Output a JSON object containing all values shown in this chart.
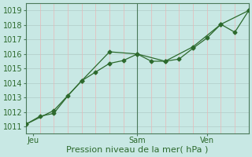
{
  "xlabel": "Pression niveau de la mer( hPa )",
  "bg_color": "#c8e8e4",
  "grid_v_color": "#e8b8b8",
  "grid_h_color": "#b0ccc8",
  "line_color": "#2d6a2d",
  "spine_color": "#4a7a5a",
  "ylim": [
    1010.5,
    1019.5
  ],
  "xlim": [
    0,
    16
  ],
  "yticks": [
    1011,
    1012,
    1013,
    1014,
    1015,
    1016,
    1017,
    1018,
    1019
  ],
  "xtick_pos": [
    0.5,
    8,
    13
  ],
  "xtick_labels": [
    "Jeu",
    "Sam",
    "Ven"
  ],
  "vline_x": 8,
  "n_vgrid": 16,
  "line1_x": [
    0,
    1,
    2,
    3,
    4,
    5,
    6,
    7,
    8,
    9,
    10,
    11,
    12,
    13,
    14,
    15,
    16
  ],
  "line1_y": [
    1011.15,
    1011.7,
    1011.9,
    1013.1,
    1014.15,
    1014.75,
    1015.35,
    1015.55,
    1016.0,
    1015.5,
    1015.5,
    1015.65,
    1016.4,
    1017.1,
    1018.05,
    1017.5,
    1019.0
  ],
  "line2_x": [
    0,
    2,
    4,
    6,
    8,
    10,
    12,
    14,
    16
  ],
  "line2_y": [
    1011.15,
    1012.1,
    1014.15,
    1016.15,
    1016.0,
    1015.5,
    1016.5,
    1018.05,
    1019.0
  ],
  "label_fontsize": 7,
  "xlabel_fontsize": 8
}
